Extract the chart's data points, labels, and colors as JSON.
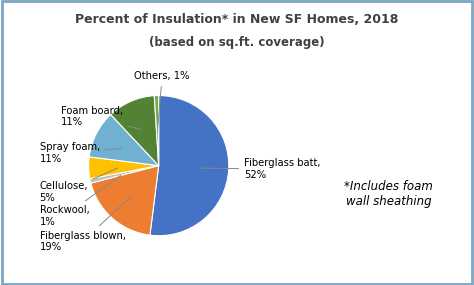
{
  "title_line1": "Percent of Insulation* in New SF Homes, 2018",
  "title_line2": "(based on sq.ft. coverage)",
  "values": [
    52,
    19,
    1,
    5,
    11,
    11,
    1
  ],
  "colors": [
    "#4472C4",
    "#ED7D31",
    "#BEBEBE",
    "#FFC000",
    "#70B0D0",
    "#548235",
    "#70AD47"
  ],
  "annotation": "*Includes foam\nwall sheathing",
  "background_color": "#FFFFFF",
  "border_color": "#7BA7C4",
  "title_color": "#404040"
}
